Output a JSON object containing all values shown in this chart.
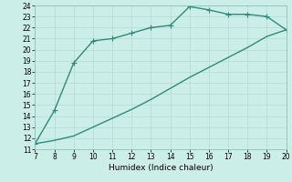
{
  "xlabel": "Humidex (Indice chaleur)",
  "xlim": [
    7,
    20
  ],
  "ylim": [
    11,
    24
  ],
  "xticks": [
    7,
    8,
    9,
    10,
    11,
    12,
    13,
    14,
    15,
    16,
    17,
    18,
    19,
    20
  ],
  "yticks": [
    11,
    12,
    13,
    14,
    15,
    16,
    17,
    18,
    19,
    20,
    21,
    22,
    23,
    24
  ],
  "line_color": "#2e8b7a",
  "bg_color": "#cceee8",
  "grid_color": "#b8ddd8",
  "upper_x": [
    7,
    8,
    9,
    10,
    11,
    12,
    13,
    14,
    15,
    16,
    17,
    18,
    19,
    20
  ],
  "upper_y": [
    11.5,
    14.5,
    18.8,
    20.8,
    21.0,
    21.5,
    22.0,
    22.2,
    23.9,
    23.6,
    23.2,
    23.2,
    23.0,
    21.8
  ],
  "lower_x": [
    7,
    8,
    9,
    10,
    11,
    12,
    13,
    14,
    15,
    16,
    17,
    18,
    19,
    20
  ],
  "lower_y": [
    11.5,
    11.8,
    12.2,
    13.0,
    13.8,
    14.6,
    15.5,
    16.5,
    17.5,
    18.4,
    19.3,
    20.2,
    21.2,
    21.8
  ],
  "marker": "+",
  "marker_size": 4,
  "linewidth": 1.0,
  "axis_fontsize": 6.5,
  "tick_fontsize": 5.5
}
